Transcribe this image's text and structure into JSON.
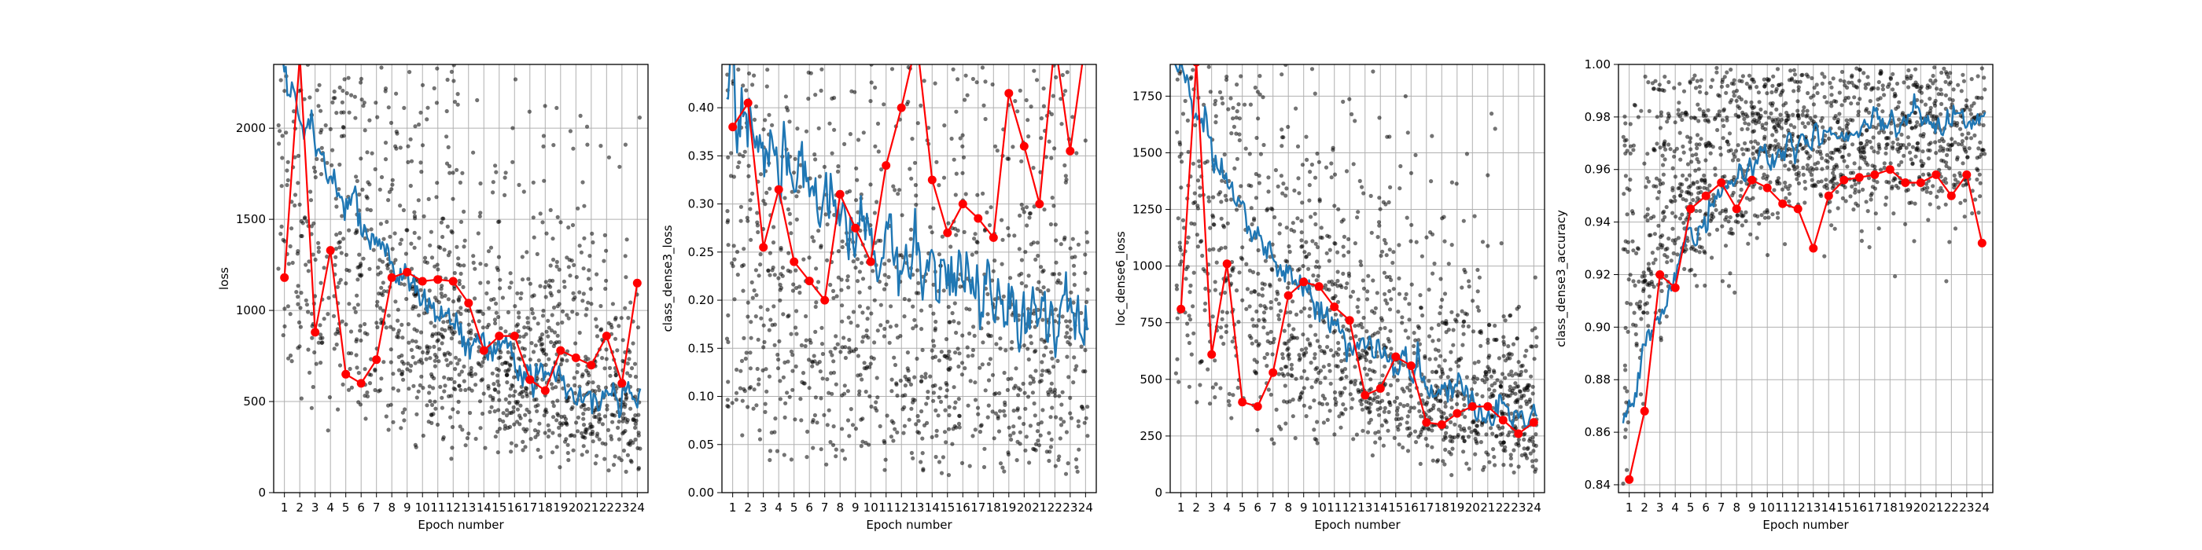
{
  "figure": {
    "background": "#ffffff"
  },
  "colors": {
    "scatter": "#000000",
    "smooth": "#1f77b4",
    "epoch": "#ff0000",
    "grid": "#b0b0b0"
  },
  "chart_data": [
    {
      "type": "scatter",
      "ylabel": "loss",
      "xlabel": "Epoch number",
      "epochs": [
        1,
        2,
        3,
        4,
        5,
        6,
        7,
        8,
        9,
        10,
        11,
        12,
        13,
        14,
        15,
        16,
        17,
        18,
        19,
        20,
        21,
        22,
        23,
        24
      ],
      "ylim": [
        0,
        2350
      ],
      "yticks": [
        0,
        500,
        1000,
        1500,
        2000
      ],
      "ytick_labels": [
        "0",
        "500",
        "1000",
        "1500",
        "2000"
      ],
      "grid": true,
      "scatter": {
        "start": 2000,
        "end": 330,
        "decay": 2.2,
        "spread": 0.55,
        "clip_low": 60,
        "clip_high": 2350
      },
      "smoothed": {
        "start": 2400,
        "end": 300,
        "decay": 2.5,
        "noise": 45
      },
      "epoch_values": [
        1180,
        2400,
        880,
        1330,
        650,
        600,
        730,
        1180,
        1210,
        1160,
        1170,
        1160,
        1040,
        780,
        860,
        860,
        620,
        560,
        780,
        740,
        700,
        860,
        600,
        1150
      ]
    },
    {
      "type": "scatter",
      "ylabel": "class_dense3_loss",
      "xlabel": "Epoch number",
      "epochs": [
        1,
        2,
        3,
        4,
        5,
        6,
        7,
        8,
        9,
        10,
        11,
        12,
        13,
        14,
        15,
        16,
        17,
        18,
        19,
        20,
        21,
        22,
        23,
        24
      ],
      "ylim": [
        0,
        0.445
      ],
      "yticks": [
        0,
        0.05,
        0.1,
        0.15,
        0.2,
        0.25,
        0.3,
        0.35,
        0.4
      ],
      "ytick_labels": [
        "0.00",
        "0.05",
        "0.10",
        "0.15",
        "0.20",
        "0.25",
        "0.30",
        "0.35",
        "0.40"
      ],
      "grid": true,
      "scatter": {
        "start": 0.34,
        "end": 0.12,
        "decay": 1.3,
        "spread": 0.85,
        "clip_low": 0.002,
        "clip_high": 0.445
      },
      "smoothed": {
        "start": 0.42,
        "end": 0.125,
        "decay": 1.8,
        "noise": 0.018
      },
      "epoch_values": [
        0.38,
        0.405,
        0.255,
        0.315,
        0.24,
        0.22,
        0.2,
        0.31,
        0.275,
        0.24,
        0.34,
        0.4,
        0.47,
        0.325,
        0.27,
        0.3,
        0.285,
        0.265,
        0.415,
        0.36,
        0.3,
        0.47,
        0.355,
        0.47
      ]
    },
    {
      "type": "scatter",
      "ylabel": "loc_dense6_loss",
      "xlabel": "Epoch number",
      "epochs": [
        1,
        2,
        3,
        4,
        5,
        6,
        7,
        8,
        9,
        10,
        11,
        12,
        13,
        14,
        15,
        16,
        17,
        18,
        19,
        20,
        21,
        22,
        23,
        24
      ],
      "ylim": [
        0,
        1890
      ],
      "yticks": [
        0,
        250,
        500,
        750,
        1000,
        1250,
        1500,
        1750
      ],
      "ytick_labels": [
        "0",
        "250",
        "500",
        "750",
        "1000",
        "1250",
        "1500",
        "1750"
      ],
      "grid": true,
      "scatter": {
        "start": 1650,
        "end": 200,
        "decay": 2.3,
        "spread": 0.55,
        "clip_low": 40,
        "clip_high": 1890
      },
      "smoothed": {
        "start": 1900,
        "end": 200,
        "decay": 2.6,
        "noise": 35
      },
      "epoch_values": [
        810,
        1900,
        610,
        1010,
        400,
        380,
        530,
        870,
        930,
        910,
        820,
        760,
        430,
        460,
        600,
        560,
        310,
        300,
        350,
        380,
        380,
        320,
        260,
        310
      ]
    },
    {
      "type": "scatter",
      "ylabel": "class_dense3_accuracy",
      "xlabel": "Epoch number",
      "epochs": [
        1,
        2,
        3,
        4,
        5,
        6,
        7,
        8,
        9,
        10,
        11,
        12,
        13,
        14,
        15,
        16,
        17,
        18,
        19,
        20,
        21,
        22,
        23,
        24
      ],
      "ylim": [
        0.837,
        1.0
      ],
      "yticks": [
        0.84,
        0.86,
        0.88,
        0.9,
        0.92,
        0.94,
        0.96,
        0.98,
        1.0
      ],
      "ytick_labels": [
        "0.84",
        "0.86",
        "0.88",
        "0.90",
        "0.92",
        "0.94",
        "0.96",
        "0.98",
        "1.00"
      ],
      "grid": true,
      "scatter_bands": [
        0.993,
        0.98,
        0.968,
        0.955,
        0.943,
        0.93,
        0.918,
        0.906
      ],
      "scatter": {
        "start": 0.86,
        "end": 0.975,
        "decay": 3.0,
        "spread": 0.02,
        "clip_low": 0.838,
        "clip_high": 0.999
      },
      "smoothed": {
        "start": 0.86,
        "end": 0.98,
        "decay": 3.2,
        "noise": 0.0025
      },
      "epoch_values": [
        0.842,
        0.868,
        0.92,
        0.915,
        0.945,
        0.95,
        0.955,
        0.945,
        0.956,
        0.953,
        0.947,
        0.945,
        0.93,
        0.95,
        0.956,
        0.957,
        0.958,
        0.96,
        0.955,
        0.955,
        0.958,
        0.95,
        0.958,
        0.932
      ]
    }
  ]
}
